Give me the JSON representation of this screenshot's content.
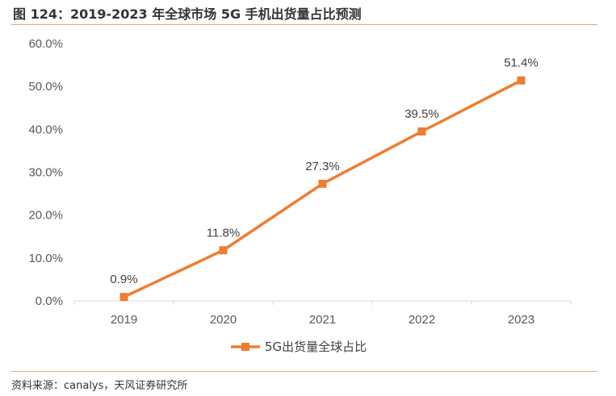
{
  "header": {
    "title": "图 124：2019-2023 年全球市场 5G 手机出货量占比预测"
  },
  "footer": {
    "source": "资料来源：canalys，天风证券研究所"
  },
  "colors": {
    "accent": "#ed7d31",
    "rule": "#f0a35c",
    "axis": "#d9d9d9"
  },
  "chart_data": {
    "type": "line",
    "title": "",
    "xlabel": "",
    "ylabel": "",
    "categories": [
      "2019",
      "2020",
      "2021",
      "2022",
      "2023"
    ],
    "series": [
      {
        "name": "5G出货量全球占比",
        "values": [
          0.9,
          11.8,
          27.3,
          39.5,
          51.4
        ],
        "labels": [
          "0.9%",
          "11.8%",
          "27.3%",
          "39.5%",
          "51.4%"
        ]
      }
    ],
    "ylim": [
      0,
      60
    ],
    "yticks": [
      0,
      10,
      20,
      30,
      40,
      50,
      60
    ],
    "ytick_labels": [
      "0.0%",
      "10.0%",
      "20.0%",
      "30.0%",
      "40.0%",
      "50.0%",
      "60.0%"
    ],
    "grid": false,
    "legend": "bottom"
  }
}
